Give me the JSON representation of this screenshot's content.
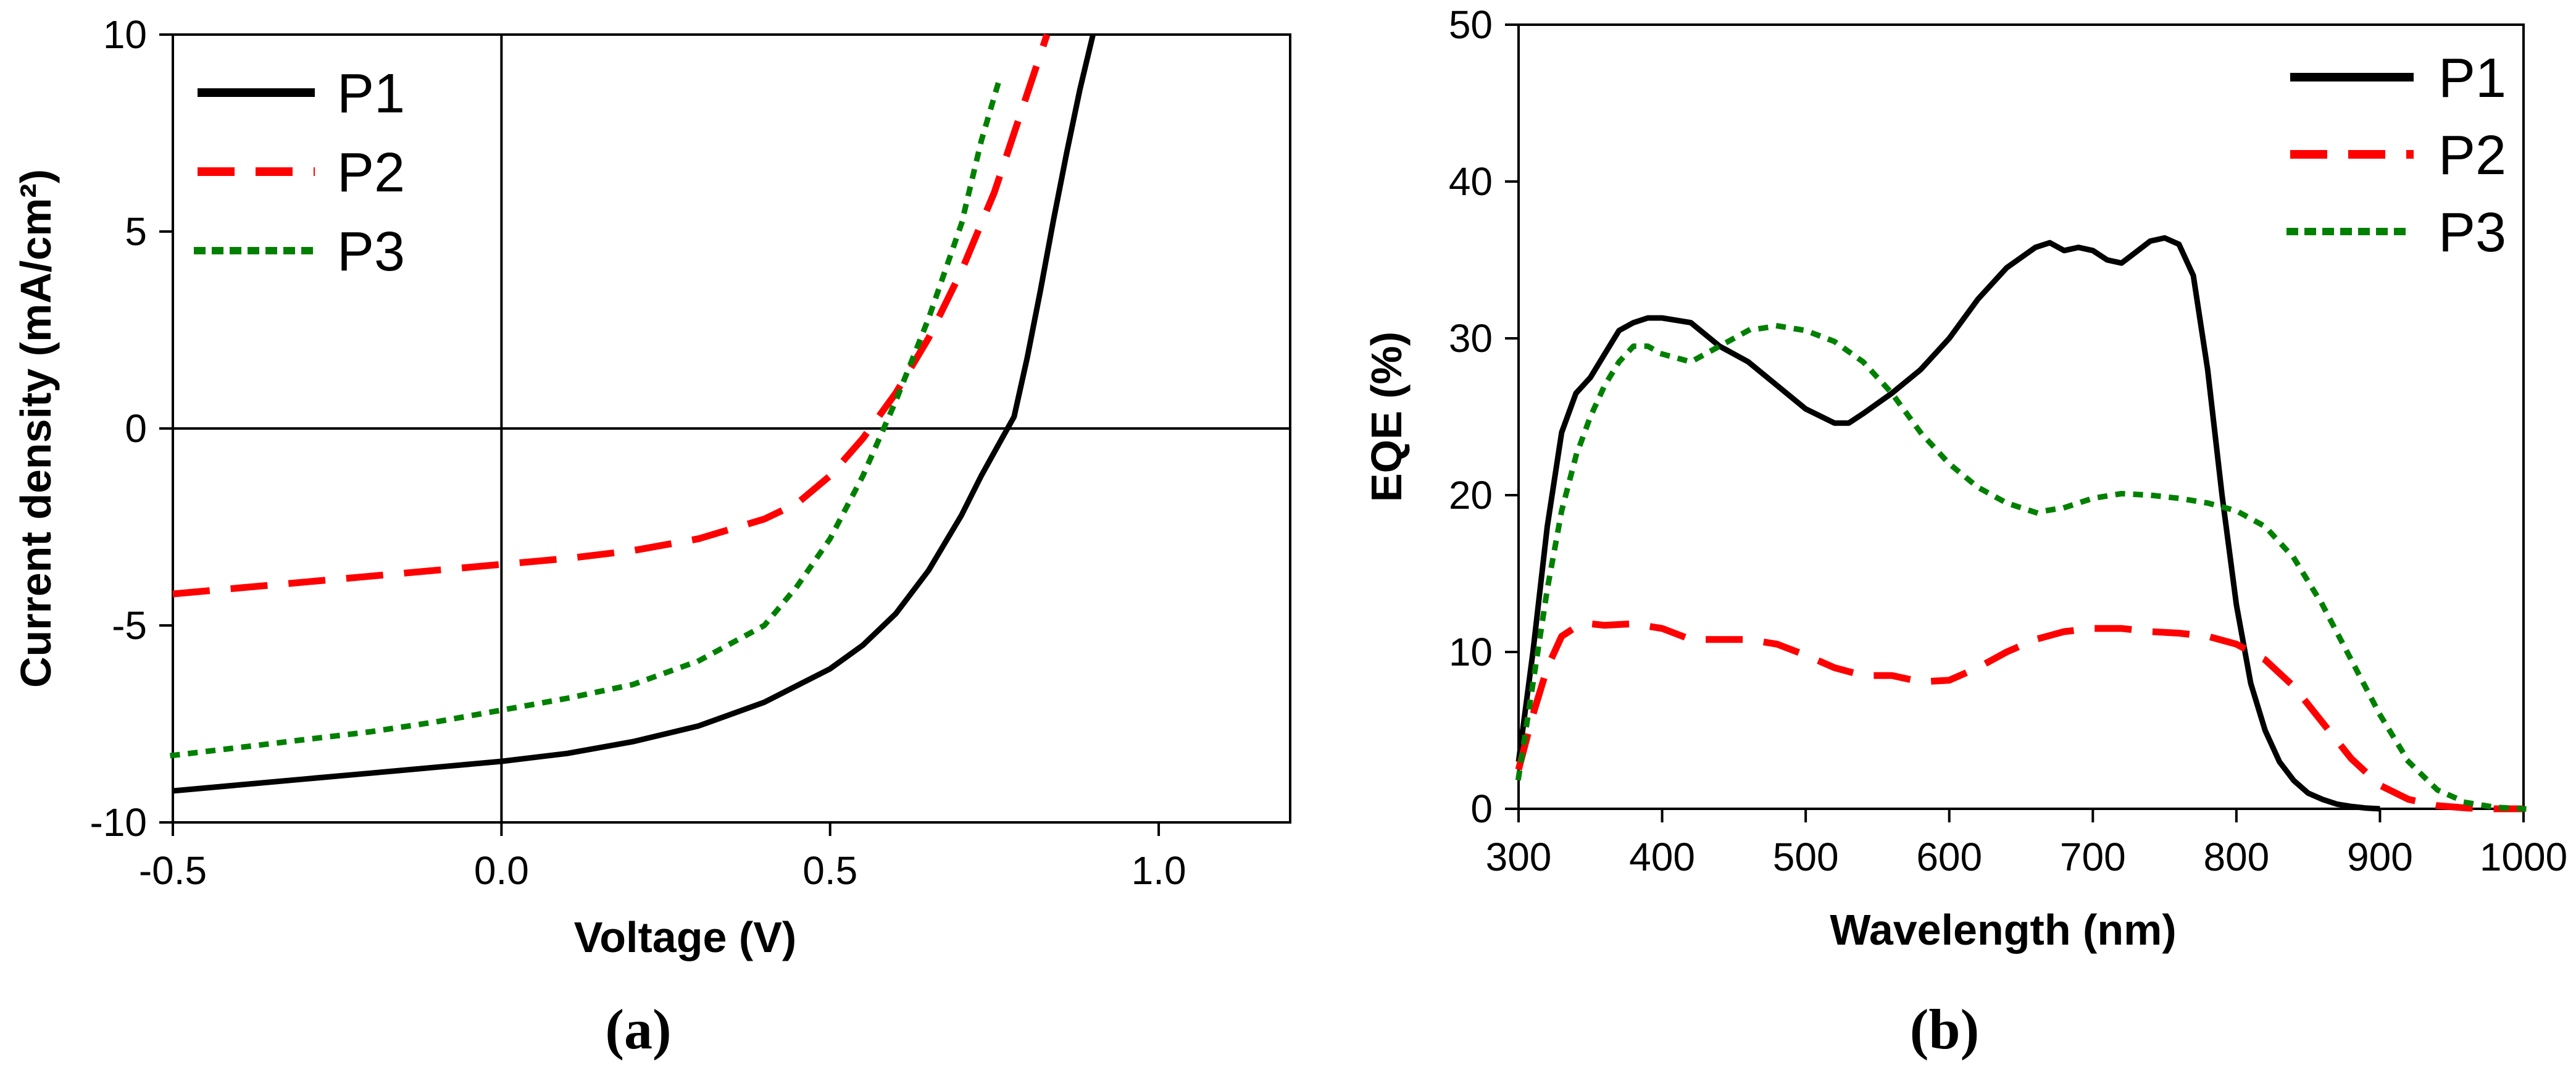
{
  "chart_data": [
    {
      "type": "line",
      "caption": "(a)",
      "xlabel": "Voltage (V)",
      "ylabel": "Current density (mA/cm²)",
      "xlim": [
        -0.5,
        1.2
      ],
      "ylim": [
        -10,
        10
      ],
      "xticks": [
        -0.5,
        0.0,
        0.5,
        1.0
      ],
      "xtick_labels": [
        "-0.5",
        "0.0",
        "0.5",
        "1.0"
      ],
      "yticks": [
        -10,
        -5,
        0,
        5,
        10
      ],
      "ytick_labels": [
        "-10",
        "-5",
        "0",
        "5",
        "10"
      ],
      "legend_position": "top-left",
      "series": [
        {
          "name": "P1",
          "color": "#000000",
          "style": "solid",
          "x": [
            -0.5,
            -0.4,
            -0.3,
            -0.2,
            -0.1,
            0.0,
            0.1,
            0.2,
            0.3,
            0.4,
            0.5,
            0.55,
            0.6,
            0.65,
            0.7,
            0.73,
            0.76,
            0.78,
            0.8,
            0.82,
            0.84,
            0.86,
            0.88,
            0.9
          ],
          "y": [
            -9.2,
            -9.05,
            -8.9,
            -8.75,
            -8.6,
            -8.45,
            -8.25,
            -7.95,
            -7.55,
            -6.95,
            -6.1,
            -5.5,
            -4.7,
            -3.6,
            -2.2,
            -1.2,
            -0.3,
            0.3,
            1.8,
            3.5,
            5.3,
            7.0,
            8.6,
            10.0
          ]
        },
        {
          "name": "P2",
          "color": "#ff0000",
          "style": "dashed",
          "x": [
            -0.5,
            -0.4,
            -0.3,
            -0.2,
            -0.1,
            0.0,
            0.1,
            0.2,
            0.3,
            0.4,
            0.45,
            0.5,
            0.55,
            0.6,
            0.65,
            0.7,
            0.75,
            0.8,
            0.83
          ],
          "y": [
            -4.2,
            -4.05,
            -3.9,
            -3.75,
            -3.6,
            -3.45,
            -3.3,
            -3.1,
            -2.8,
            -2.3,
            -1.9,
            -1.2,
            -0.25,
            0.9,
            2.3,
            4.0,
            6.0,
            8.5,
            10.0
          ]
        },
        {
          "name": "P3",
          "color": "#008000",
          "style": "dotted",
          "x": [
            -0.5,
            -0.4,
            -0.3,
            -0.2,
            -0.1,
            0.0,
            0.1,
            0.2,
            0.3,
            0.4,
            0.45,
            0.5,
            0.55,
            0.6,
            0.65,
            0.7,
            0.73,
            0.76
          ],
          "y": [
            -8.3,
            -8.1,
            -7.9,
            -7.7,
            -7.45,
            -7.15,
            -6.85,
            -6.5,
            -5.9,
            -5.0,
            -4.0,
            -2.8,
            -1.2,
            0.7,
            2.8,
            5.2,
            7.3,
            9.0
          ]
        }
      ]
    },
    {
      "type": "line",
      "caption": "(b)",
      "xlabel": "Wavelength (nm)",
      "ylabel": "EQE (%)",
      "xlim": [
        300,
        1000
      ],
      "ylim": [
        0,
        50
      ],
      "xticks": [
        300,
        400,
        500,
        600,
        700,
        800,
        900,
        1000
      ],
      "xtick_labels": [
        "300",
        "400",
        "500",
        "600",
        "700",
        "800",
        "900",
        "1000"
      ],
      "yticks": [
        0,
        10,
        20,
        30,
        40,
        50
      ],
      "ytick_labels": [
        "0",
        "10",
        "20",
        "30",
        "40",
        "50"
      ],
      "legend_position": "top-right",
      "series": [
        {
          "name": "P1",
          "color": "#000000",
          "style": "solid",
          "x": [
            300,
            310,
            320,
            330,
            340,
            350,
            360,
            370,
            380,
            390,
            400,
            420,
            440,
            460,
            480,
            500,
            520,
            530,
            540,
            560,
            580,
            600,
            620,
            640,
            660,
            670,
            680,
            690,
            700,
            710,
            720,
            730,
            740,
            750,
            760,
            770,
            780,
            790,
            800,
            810,
            820,
            830,
            840,
            850,
            860,
            870,
            880,
            890,
            900
          ],
          "y": [
            3,
            10,
            18,
            24,
            26.5,
            27.5,
            29,
            30.5,
            31,
            31.3,
            31.3,
            31,
            29.5,
            28.5,
            27,
            25.5,
            24.6,
            24.6,
            25.2,
            26.5,
            28,
            30,
            32.5,
            34.5,
            35.8,
            36.1,
            35.6,
            35.8,
            35.6,
            35,
            34.8,
            35.5,
            36.2,
            36.4,
            36,
            34,
            28,
            20,
            13,
            8,
            5,
            3,
            1.8,
            1,
            0.6,
            0.3,
            0.15,
            0.05,
            0
          ]
        },
        {
          "name": "P2",
          "color": "#ff0000",
          "style": "dashed",
          "x": [
            300,
            310,
            320,
            330,
            340,
            350,
            360,
            380,
            400,
            420,
            440,
            460,
            480,
            500,
            520,
            540,
            560,
            580,
            600,
            620,
            640,
            660,
            680,
            700,
            720,
            740,
            760,
            780,
            800,
            820,
            840,
            860,
            880,
            900,
            920,
            940,
            960,
            980,
            1000
          ],
          "y": [
            2.5,
            6,
            9,
            11,
            11.6,
            11.8,
            11.7,
            11.8,
            11.5,
            10.8,
            10.8,
            10.8,
            10.5,
            9.8,
            9,
            8.5,
            8.5,
            8.1,
            8.2,
            9,
            10,
            10.8,
            11.3,
            11.5,
            11.5,
            11.3,
            11.2,
            11,
            10.5,
            9.5,
            7.8,
            5.5,
            3.2,
            1.5,
            0.6,
            0.2,
            0.05,
            0,
            0
          ]
        },
        {
          "name": "P3",
          "color": "#008000",
          "style": "dotted",
          "x": [
            300,
            310,
            320,
            330,
            340,
            350,
            360,
            370,
            380,
            390,
            400,
            420,
            440,
            460,
            480,
            500,
            520,
            540,
            560,
            580,
            600,
            620,
            640,
            660,
            680,
            700,
            720,
            740,
            760,
            780,
            800,
            820,
            840,
            860,
            880,
            900,
            920,
            940,
            960,
            980,
            1000
          ],
          "y": [
            2,
            8,
            14,
            19,
            22.5,
            25,
            27,
            28.5,
            29.5,
            29.5,
            29,
            28.5,
            29.5,
            30.5,
            30.8,
            30.5,
            29.8,
            28.5,
            26.5,
            24,
            22,
            20.5,
            19.5,
            18.9,
            19.2,
            19.8,
            20.1,
            20,
            19.8,
            19.5,
            19,
            18,
            16,
            13,
            9.5,
            6,
            3,
            1.2,
            0.4,
            0.1,
            0
          ]
        }
      ]
    }
  ]
}
